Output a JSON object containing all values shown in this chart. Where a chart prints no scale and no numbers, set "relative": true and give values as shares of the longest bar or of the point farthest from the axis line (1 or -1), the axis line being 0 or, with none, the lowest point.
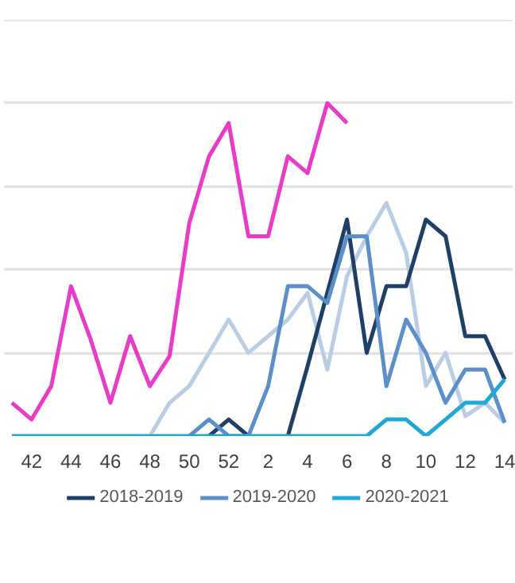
{
  "chart_data": {
    "type": "line",
    "relative": true,
    "grid": "y",
    "legend": "bottom",
    "marker": "none",
    "line_style": "solid",
    "categories": [
      null,
      "42",
      null,
      "44",
      null,
      "46",
      null,
      "48",
      null,
      "50",
      null,
      "52",
      null,
      "2",
      null,
      "4",
      null,
      "6",
      null,
      "8",
      null,
      "10",
      null,
      "12",
      null,
      "14"
    ],
    "series": [
      {
        "color": "#e83bc8",
        "values": [
          0.1,
          0.05,
          0.15,
          0.45,
          0.29,
          0.1,
          0.3,
          0.15,
          0.24,
          0.64,
          0.84,
          0.94,
          0.6,
          0.6,
          0.84,
          0.79,
          1.0,
          0.94,
          null,
          null,
          null,
          null,
          null,
          null,
          null,
          null
        ]
      },
      {
        "color": "#b9cde4",
        "values": [
          null,
          null,
          null,
          null,
          null,
          null,
          null,
          0,
          0.1,
          0.15,
          0.25,
          0.35,
          0.25,
          0.3,
          0.35,
          0.43,
          0.2,
          0.48,
          0.6,
          0.7,
          0.55,
          0.15,
          0.25,
          0.06,
          0.1,
          0.04
        ]
      },
      {
        "name": "2018-2019",
        "color": "#1f3f66",
        "values": [
          null,
          null,
          null,
          null,
          null,
          null,
          null,
          null,
          null,
          null,
          0,
          0.05,
          0,
          null,
          0,
          0.21,
          0.43,
          0.65,
          0.25,
          0.45,
          0.45,
          0.65,
          0.6,
          0.3,
          0.3,
          0.17
        ]
      },
      {
        "name": "2019-2020",
        "color": "#5b8fc7",
        "values": [
          null,
          null,
          null,
          null,
          null,
          null,
          null,
          null,
          null,
          0,
          0.05,
          0,
          0,
          0.15,
          0.45,
          0.45,
          0.4,
          0.6,
          0.6,
          0.15,
          0.35,
          0.25,
          0.1,
          0.2,
          0.2,
          0.04
        ]
      },
      {
        "name": "2020-2021",
        "color": "#1fa8d8",
        "values": [
          0,
          0,
          0,
          0,
          0,
          0,
          0,
          0,
          0,
          0,
          0,
          0,
          0,
          0,
          0,
          0,
          0,
          0,
          0,
          0.05,
          0.05,
          0,
          0.05,
          0.1,
          0.1,
          0.17
        ]
      }
    ]
  }
}
